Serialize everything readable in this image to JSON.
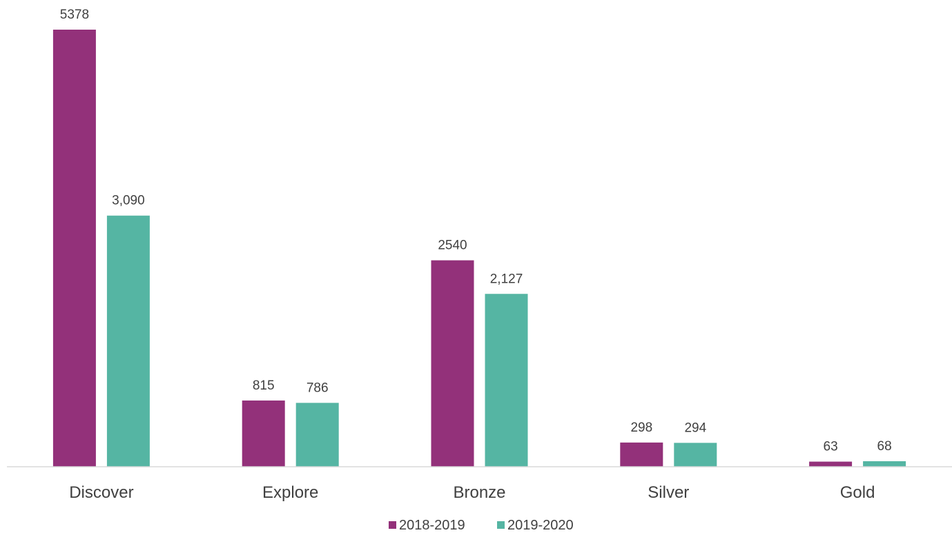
{
  "chart_data": {
    "type": "bar",
    "title": "",
    "xlabel": "",
    "ylabel": "",
    "categories": [
      "Discover",
      "Explore",
      "Bronze",
      "Silver",
      "Gold"
    ],
    "series": [
      {
        "name": "2018-2019",
        "color": "#93317A",
        "values": [
          5378,
          815,
          2540,
          298,
          63
        ],
        "labels": [
          "5378",
          "815",
          "2540",
          "298",
          "63"
        ]
      },
      {
        "name": "2019-2020",
        "color": "#55B5A3",
        "values": [
          3090,
          786,
          2127,
          294,
          68
        ],
        "labels": [
          "3,090",
          "786",
          "2,127",
          "294",
          "68"
        ]
      }
    ],
    "ylim": [
      0,
      5378
    ],
    "grid": false,
    "legend_position": "bottom"
  }
}
